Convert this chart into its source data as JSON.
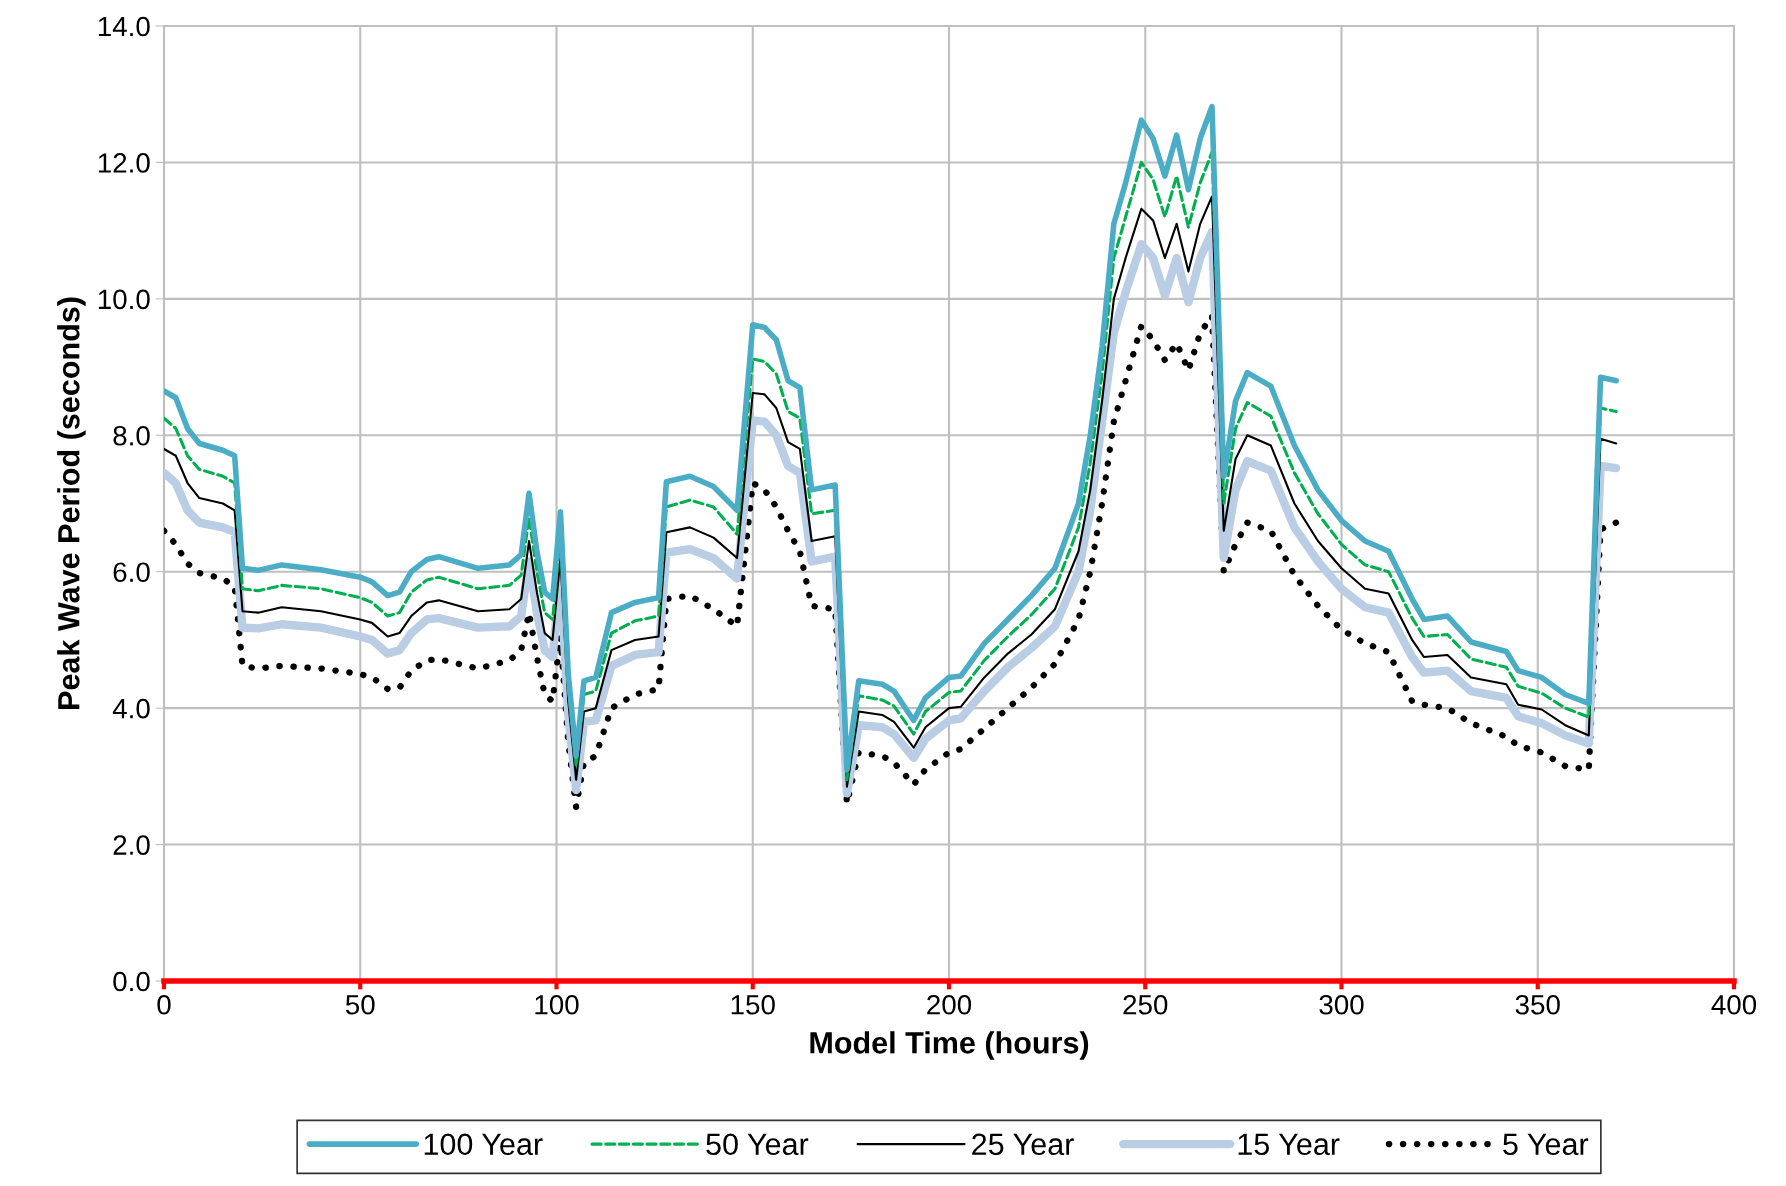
{
  "chart_data": {
    "type": "line",
    "xlabel": "Model Time (hours)",
    "ylabel": "Peak Wave Period (seconds)",
    "xlim": [
      0,
      400
    ],
    "xticks": [
      0,
      50,
      100,
      150,
      200,
      250,
      300,
      350,
      400
    ],
    "ylim": [
      0,
      14
    ],
    "yticks": [
      {
        "value": 0,
        "label": "0.0"
      },
      {
        "value": 2,
        "label": "2.0"
      },
      {
        "value": 4,
        "label": "4.0"
      },
      {
        "value": 6,
        "label": "6.0"
      },
      {
        "value": 8,
        "label": "8.0"
      },
      {
        "value": 10,
        "label": "10.0"
      },
      {
        "value": 12,
        "label": "12.0"
      },
      {
        "value": 14,
        "label": "14.0"
      }
    ],
    "grid": true,
    "legend": "bottom",
    "marker": "none",
    "x": [
      0,
      3,
      6,
      9,
      15,
      18,
      20,
      24,
      30,
      40,
      50,
      53,
      57,
      60,
      63,
      67,
      70,
      80,
      88,
      91,
      93,
      95,
      97,
      99,
      101,
      103,
      105,
      107,
      110,
      114,
      120,
      126,
      128,
      134,
      140,
      146,
      150,
      153,
      156,
      159,
      162,
      165,
      171,
      174,
      177,
      183,
      186,
      191,
      194,
      200,
      203,
      209,
      215,
      221,
      227,
      233,
      236,
      239,
      242,
      245,
      249,
      252,
      255,
      258,
      261,
      264,
      267,
      270,
      273,
      276,
      282,
      288,
      294,
      300,
      306,
      312,
      318,
      321,
      327,
      333,
      342,
      345,
      351,
      357,
      363,
      366,
      370
    ],
    "series": [
      {
        "name": "100 Year",
        "color": "#4bacc6",
        "line_style": "solid",
        "values": [
          8.65,
          8.55,
          8.1,
          7.88,
          7.78,
          7.7,
          6.05,
          6.02,
          6.1,
          6.03,
          5.92,
          5.85,
          5.65,
          5.7,
          6.0,
          6.18,
          6.22,
          6.05,
          6.1,
          6.25,
          7.15,
          6.3,
          5.7,
          5.6,
          6.88,
          4.5,
          3.3,
          4.4,
          4.45,
          5.4,
          5.55,
          5.62,
          7.32,
          7.4,
          7.25,
          6.9,
          9.62,
          9.58,
          9.4,
          8.8,
          8.7,
          7.2,
          7.27,
          3.1,
          4.4,
          4.35,
          4.25,
          3.82,
          4.15,
          4.45,
          4.47,
          4.95,
          5.3,
          5.65,
          6.05,
          7.0,
          8.0,
          9.3,
          11.1,
          11.7,
          12.62,
          12.35,
          11.8,
          12.4,
          11.6,
          12.35,
          12.82,
          7.4,
          8.5,
          8.92,
          8.72,
          7.85,
          7.2,
          6.75,
          6.45,
          6.3,
          5.6,
          5.3,
          5.35,
          4.97,
          4.83,
          4.55,
          4.45,
          4.2,
          4.07,
          8.85,
          8.8
        ]
      },
      {
        "name": "50 Year",
        "color": "#00b050",
        "line_style": "dashed",
        "values": [
          8.25,
          8.1,
          7.7,
          7.5,
          7.4,
          7.3,
          5.75,
          5.72,
          5.8,
          5.75,
          5.62,
          5.55,
          5.35,
          5.4,
          5.7,
          5.88,
          5.92,
          5.75,
          5.8,
          5.95,
          6.8,
          6.0,
          5.4,
          5.3,
          6.55,
          4.3,
          3.15,
          4.2,
          4.25,
          5.1,
          5.28,
          5.35,
          6.95,
          7.05,
          6.95,
          6.55,
          9.12,
          9.08,
          8.9,
          8.35,
          8.25,
          6.85,
          6.9,
          2.95,
          4.18,
          4.12,
          4.03,
          3.62,
          3.95,
          4.23,
          4.25,
          4.7,
          5.05,
          5.37,
          5.75,
          6.65,
          7.6,
          8.9,
          10.6,
          11.2,
          12.0,
          11.75,
          11.2,
          11.8,
          11.05,
          11.7,
          12.15,
          7.0,
          8.1,
          8.48,
          8.28,
          7.45,
          6.85,
          6.4,
          6.1,
          6.0,
          5.32,
          5.05,
          5.08,
          4.72,
          4.6,
          4.32,
          4.22,
          4.0,
          3.87,
          8.4,
          8.35
        ]
      },
      {
        "name": "25 Year",
        "color": "#000000",
        "line_style": "solid",
        "values": [
          7.8,
          7.7,
          7.3,
          7.08,
          7.0,
          6.9,
          5.42,
          5.4,
          5.48,
          5.42,
          5.3,
          5.25,
          5.05,
          5.1,
          5.35,
          5.55,
          5.58,
          5.42,
          5.45,
          5.6,
          6.45,
          5.7,
          5.1,
          5.0,
          6.2,
          4.1,
          2.95,
          3.95,
          4.0,
          4.85,
          5.0,
          5.05,
          6.58,
          6.65,
          6.5,
          6.2,
          8.62,
          8.6,
          8.4,
          7.9,
          7.8,
          6.45,
          6.52,
          2.85,
          3.95,
          3.9,
          3.8,
          3.42,
          3.72,
          4.0,
          4.02,
          4.45,
          4.8,
          5.08,
          5.45,
          6.3,
          7.2,
          8.5,
          10.0,
          10.6,
          11.32,
          11.15,
          10.6,
          11.1,
          10.4,
          11.1,
          11.5,
          6.6,
          7.65,
          8.0,
          7.85,
          7.0,
          6.45,
          6.05,
          5.75,
          5.68,
          5.0,
          4.75,
          4.78,
          4.45,
          4.35,
          4.05,
          3.98,
          3.75,
          3.6,
          7.95,
          7.88
        ]
      },
      {
        "name": "15 Year",
        "color": "#b9cde5",
        "line_style": "solid",
        "values": [
          7.45,
          7.3,
          6.9,
          6.72,
          6.65,
          6.58,
          5.18,
          5.17,
          5.23,
          5.18,
          5.05,
          5.0,
          4.8,
          4.85,
          5.1,
          5.3,
          5.32,
          5.18,
          5.2,
          5.35,
          6.15,
          5.4,
          4.85,
          4.75,
          5.95,
          3.9,
          2.8,
          3.8,
          3.82,
          4.62,
          4.78,
          4.82,
          6.28,
          6.33,
          6.2,
          5.9,
          8.22,
          8.2,
          8.0,
          7.55,
          7.45,
          6.15,
          6.22,
          2.75,
          3.75,
          3.72,
          3.62,
          3.27,
          3.55,
          3.82,
          3.85,
          4.25,
          4.6,
          4.88,
          5.2,
          6.0,
          6.9,
          8.2,
          9.5,
          10.1,
          10.8,
          10.6,
          10.05,
          10.6,
          9.95,
          10.6,
          10.98,
          6.2,
          7.2,
          7.62,
          7.48,
          6.65,
          6.15,
          5.75,
          5.48,
          5.4,
          4.75,
          4.52,
          4.55,
          4.25,
          4.15,
          3.88,
          3.78,
          3.6,
          3.48,
          7.55,
          7.52
        ]
      },
      {
        "name": "5 Year",
        "color": "#000000",
        "line_style": "dotted",
        "values": [
          6.6,
          6.4,
          6.12,
          5.98,
          5.9,
          5.78,
          4.62,
          4.58,
          4.62,
          4.58,
          4.5,
          4.45,
          4.28,
          4.3,
          4.55,
          4.7,
          4.72,
          4.58,
          4.7,
          4.85,
          5.4,
          4.75,
          4.2,
          4.1,
          5.05,
          3.5,
          2.55,
          3.2,
          3.3,
          4.0,
          4.2,
          4.28,
          5.6,
          5.65,
          5.45,
          5.2,
          7.3,
          7.2,
          6.95,
          6.6,
          6.3,
          5.5,
          5.45,
          2.6,
          3.35,
          3.3,
          3.2,
          2.88,
          3.1,
          3.35,
          3.4,
          3.7,
          4.0,
          4.3,
          4.65,
          5.3,
          6.0,
          7.0,
          8.2,
          8.8,
          9.6,
          9.4,
          9.1,
          9.35,
          8.95,
          9.5,
          9.75,
          6.0,
          6.4,
          6.72,
          6.6,
          5.95,
          5.5,
          5.15,
          4.95,
          4.82,
          4.1,
          4.05,
          4.0,
          3.78,
          3.58,
          3.45,
          3.35,
          3.15,
          3.1,
          6.62,
          6.72
        ]
      }
    ]
  }
}
